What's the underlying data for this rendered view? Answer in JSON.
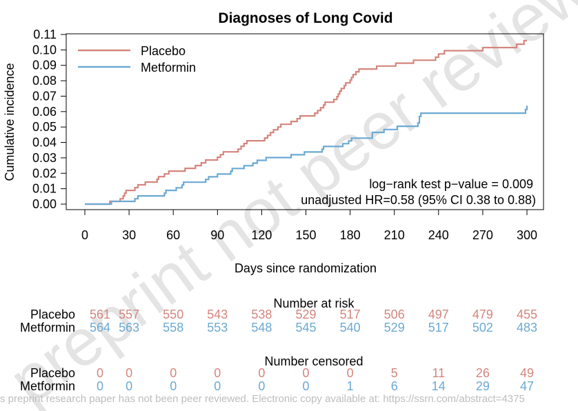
{
  "colors": {
    "placebo": "#D4857D",
    "metformin": "#6BA9D2",
    "axis": "#000000",
    "watermark": "#E4E4E4",
    "footer": "#BDBDBD"
  },
  "watermark": {
    "text": "preprint not peer reviewed"
  },
  "footer": {
    "text": "s preprint research paper has not been peer reviewed. Electronic copy available at: https://ssrn.com/abstract=4375"
  },
  "chart_data": {
    "type": "line",
    "subtype": "kaplan-meier-cumulative-incidence-step",
    "title": "Diagnoses of Long Covid",
    "xlabel": "Days since randomization",
    "ylabel": "Cumulative incidence",
    "xlim": [
      0,
      300
    ],
    "ylim": [
      0,
      0.11
    ],
    "xticks": [
      0,
      30,
      60,
      90,
      120,
      150,
      180,
      210,
      240,
      270,
      300
    ],
    "xtick_labels": [
      "0",
      "30",
      "60",
      "90",
      "120",
      "150",
      "180",
      "210",
      "240",
      "270",
      "300"
    ],
    "yticks": [
      0,
      0.01,
      0.02,
      0.03,
      0.04,
      0.05,
      0.06,
      0.07,
      0.08,
      0.09,
      0.1,
      0.11
    ],
    "ytick_labels": [
      "0.00",
      "0.01",
      "0.02",
      "0.03",
      "0.04",
      "0.05",
      "0.06",
      "0.07",
      "0.08",
      "0.09",
      "0.10",
      "0.11"
    ],
    "legend_position": "top-left",
    "annotations": [
      "log−rank test p−value = 0.009",
      "unadjusted HR=0.58 (95% CI 0.38 to 0.88)"
    ],
    "series": [
      {
        "name": "Placebo",
        "color_key": "placebo",
        "points": [
          [
            0,
            0
          ],
          [
            17,
            0.0018
          ],
          [
            24,
            0.0035
          ],
          [
            26,
            0.0053
          ],
          [
            27,
            0.0071
          ],
          [
            28,
            0.0089
          ],
          [
            34,
            0.0107
          ],
          [
            36,
            0.0125
          ],
          [
            41,
            0.0143
          ],
          [
            49,
            0.0161
          ],
          [
            50,
            0.0178
          ],
          [
            54,
            0.0196
          ],
          [
            57,
            0.0214
          ],
          [
            68,
            0.0232
          ],
          [
            75,
            0.025
          ],
          [
            79,
            0.0268
          ],
          [
            82,
            0.0286
          ],
          [
            90,
            0.0304
          ],
          [
            92,
            0.0321
          ],
          [
            94,
            0.0339
          ],
          [
            104,
            0.0357
          ],
          [
            106,
            0.0375
          ],
          [
            108,
            0.0393
          ],
          [
            110,
            0.0411
          ],
          [
            122,
            0.0429
          ],
          [
            124,
            0.0446
          ],
          [
            126,
            0.0464
          ],
          [
            128,
            0.0482
          ],
          [
            131,
            0.05
          ],
          [
            133,
            0.0518
          ],
          [
            140,
            0.0536
          ],
          [
            144,
            0.0554
          ],
          [
            146,
            0.0572
          ],
          [
            156,
            0.059
          ],
          [
            158,
            0.0607
          ],
          [
            160,
            0.0625
          ],
          [
            162,
            0.0643
          ],
          [
            163,
            0.0661
          ],
          [
            169,
            0.0679
          ],
          [
            171,
            0.0697
          ],
          [
            172,
            0.0715
          ],
          [
            173,
            0.0733
          ],
          [
            174,
            0.075
          ],
          [
            176,
            0.0768
          ],
          [
            177,
            0.0786
          ],
          [
            180,
            0.0804
          ],
          [
            181,
            0.0822
          ],
          [
            182,
            0.084
          ],
          [
            184,
            0.0858
          ],
          [
            186,
            0.0876
          ],
          [
            198,
            0.0895
          ],
          [
            211,
            0.0914
          ],
          [
            223,
            0.0933
          ],
          [
            238,
            0.0953
          ],
          [
            240,
            0.0974
          ],
          [
            244,
            0.0995
          ],
          [
            270,
            0.1015
          ],
          [
            293,
            0.1037
          ],
          [
            298,
            0.106
          ],
          [
            300,
            0.106
          ]
        ]
      },
      {
        "name": "Metformin",
        "color_key": "metformin",
        "points": [
          [
            0,
            0
          ],
          [
            18,
            0.0018
          ],
          [
            34,
            0.0035
          ],
          [
            36,
            0.0053
          ],
          [
            54,
            0.0071
          ],
          [
            55,
            0.0089
          ],
          [
            62,
            0.0106
          ],
          [
            66,
            0.0124
          ],
          [
            67,
            0.0142
          ],
          [
            82,
            0.016
          ],
          [
            84,
            0.0177
          ],
          [
            90,
            0.0195
          ],
          [
            99,
            0.0213
          ],
          [
            100,
            0.0231
          ],
          [
            108,
            0.0249
          ],
          [
            114,
            0.0266
          ],
          [
            117,
            0.0284
          ],
          [
            123,
            0.0302
          ],
          [
            140,
            0.032
          ],
          [
            149,
            0.0338
          ],
          [
            161,
            0.0356
          ],
          [
            162,
            0.0374
          ],
          [
            175,
            0.0392
          ],
          [
            179,
            0.041
          ],
          [
            181,
            0.0428
          ],
          [
            195,
            0.0447
          ],
          [
            195,
            0.0465
          ],
          [
            203,
            0.0484
          ],
          [
            212,
            0.0505
          ],
          [
            226,
            0.0526
          ],
          [
            227,
            0.0547
          ],
          [
            227,
            0.0569
          ],
          [
            228,
            0.059
          ],
          [
            299,
            0.0614
          ],
          [
            300,
            0.0638
          ]
        ]
      }
    ],
    "risk_table": {
      "title": "Number at risk",
      "columns": [
        0,
        30,
        60,
        90,
        120,
        150,
        180,
        210,
        240,
        270,
        300
      ],
      "rows": [
        {
          "name": "Placebo",
          "color_key": "placebo",
          "values": [
            561,
            557,
            550,
            543,
            538,
            529,
            517,
            506,
            497,
            479,
            455
          ]
        },
        {
          "name": "Metformin",
          "color_key": "metformin",
          "values": [
            564,
            563,
            558,
            553,
            548,
            545,
            540,
            529,
            517,
            502,
            483
          ]
        }
      ]
    },
    "censor_table": {
      "title": "Number censored",
      "columns": [
        0,
        30,
        60,
        90,
        120,
        150,
        180,
        210,
        240,
        270,
        300
      ],
      "rows": [
        {
          "name": "Placebo",
          "color_key": "placebo",
          "values": [
            0,
            0,
            0,
            0,
            0,
            0,
            0,
            5,
            11,
            26,
            49
          ]
        },
        {
          "name": "Metformin",
          "color_key": "metformin",
          "values": [
            0,
            0,
            0,
            0,
            0,
            0,
            1,
            6,
            14,
            29,
            47
          ]
        }
      ]
    }
  }
}
